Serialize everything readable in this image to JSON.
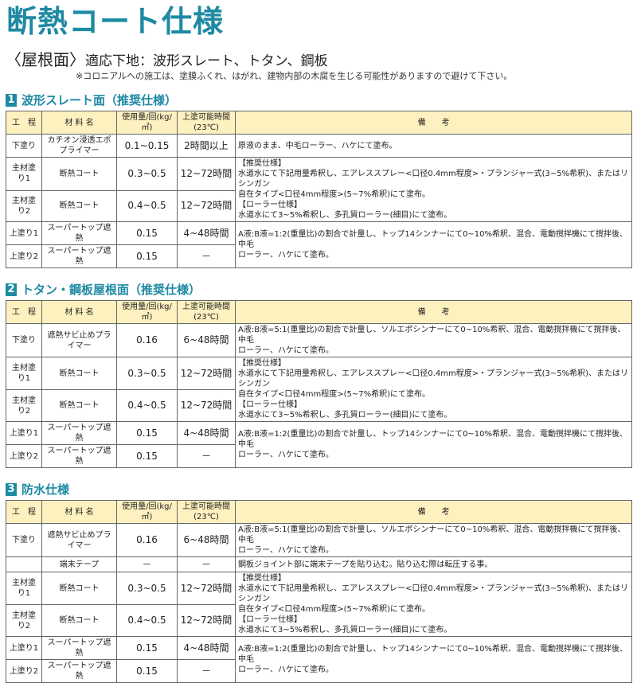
{
  "title": "断熱コート仕様",
  "subtitle": {
    "lead": "〈屋根面〉",
    "text": "適応下地：波形スレート、トタン、鋼板"
  },
  "caution": "※コロニアルへの施工は、塗膜ふくれ、はがれ、建物内部の木腐を生じる可能性がありますので避けて下さい。",
  "colors": {
    "accent": "#1e8aa3",
    "header_bg": "#fdf1c0"
  },
  "headers": [
    "工　程",
    "材 料 名",
    "使用量/回(kg/㎡)",
    "上塗可能時間(23℃)",
    "備　　考"
  ],
  "sections": [
    {
      "number": "1",
      "title": "波形スレート面（推奨仕様）",
      "rows": [
        {
          "process": "下塗り",
          "material": "カチオン浸透エポプライマー",
          "amount": "0.1~0.15",
          "interval": "2時間以上",
          "note": [
            "原液のまま、中毛ローラー、ハケにて塗布。"
          ],
          "span": 1
        },
        {
          "process": "主材塗り1",
          "material": "断熱コート",
          "amount": "0.3~0.5",
          "interval": "12~72時間",
          "note": [
            "【推奨仕様】",
            "水道水にて下記用量希釈し、エアレススプレー<口径0.4mm程度>・プランジャー式(3~5%希釈)、またはリシンガン",
            "自在タイプ<口径4mm程度>(5~7%希釈)にて塗布。",
            "【ローラー仕様】",
            "水道水にて3~5%希釈し、多孔質ローラー(細目)にて塗布。"
          ],
          "span": 2
        },
        {
          "process": "主材塗り2",
          "material": "断熱コート",
          "amount": "0.4~0.5",
          "interval": "12~72時間"
        },
        {
          "process": "上塗り1",
          "material": "スーパートップ遮熱",
          "amount": "0.15",
          "interval": "4~48時間",
          "note": [
            "A液:B液=1:2(重量比)の割合で計量し、トップ14シンナーにて0~10%希釈、混合、電動撹拌機にて撹拌後、中毛",
            "ローラー、ハケにて塗布。"
          ],
          "span": 2
        },
        {
          "process": "上塗り2",
          "material": "スーパートップ遮熱",
          "amount": "0.15",
          "interval": "－"
        }
      ]
    },
    {
      "number": "2",
      "title": "トタン・鋼板屋根面（推奨仕様）",
      "rows": [
        {
          "process": "下塗り",
          "material": "遮熱サビ止めプライマー",
          "amount": "0.16",
          "interval": "6~48時間",
          "note": [
            "A液:B液=5:1(重量比)の割合で計量し、ソルエポシンナーにて0~10%希釈、混合、電動撹拌機にて撹拌後、中毛",
            "ローラー、ハケにて塗布。"
          ],
          "span": 1
        },
        {
          "process": "主材塗り1",
          "material": "断熱コート",
          "amount": "0.3~0.5",
          "interval": "12~72時間",
          "note": [
            "【推奨仕様】",
            "水道水にて下記用量希釈し、エアレススプレー<口径0.4mm程度>・プランジャー式(3~5%希釈)、またはリシンガン",
            "自在タイプ<口径4mm程度>(5~7%希釈)にて塗布。",
            "【ローラー仕様】",
            "水道水にて3~5%希釈し、多孔質ローラー(細目)にて塗布。"
          ],
          "span": 2
        },
        {
          "process": "主材塗り2",
          "material": "断熱コート",
          "amount": "0.4~0.5",
          "interval": "12~72時間"
        },
        {
          "process": "上塗り1",
          "material": "スーパートップ遮熱",
          "amount": "0.15",
          "interval": "4~48時間",
          "note": [
            "A液:B液=1:2(重量比)の割合で計量し、トップ14シンナーにて0~10%希釈、混合、電動撹拌機にて撹拌後、中毛",
            "ローラー、ハケにて塗布。"
          ],
          "span": 2
        },
        {
          "process": "上塗り2",
          "material": "スーパートップ遮熱",
          "amount": "0.15",
          "interval": "－"
        }
      ]
    },
    {
      "number": "3",
      "title": "防水仕様",
      "rows": [
        {
          "process": "下塗り",
          "material": "遮熱サビ止めプライマー",
          "amount": "0.16",
          "interval": "6~48時間",
          "note": [
            "A液:B液=5:1(重量比)の割合で計量し、ソルエポシンナーにて0~10%希釈、混合、電動撹拌機にて撹拌後、中毛",
            "ローラー、ハケにて塗布。"
          ],
          "span": 1
        },
        {
          "process": "",
          "material": "端末テープ",
          "amount": "－",
          "interval": "－",
          "note": [
            "鋼板ジョイント部に端末テープを貼り込む。貼り込む際は転圧する事。"
          ],
          "span": 1
        },
        {
          "process": "主材塗り1",
          "material": "断熱コート",
          "amount": "0.3~0.5",
          "interval": "12~72時間",
          "note": [
            "【推奨仕様】",
            "水道水にて下記用量希釈し、エアレススプレー<口径0.4mm程度>・プランジャー式(3~5%希釈)、またはリシンガン",
            "自在タイプ<口径4mm程度>(5~7%希釈)にて塗布。",
            "【ローラー仕様】",
            "水道水にて3~5%希釈し、多孔質ローラー(細目)にて塗布。"
          ],
          "span": 2
        },
        {
          "process": "主材塗り2",
          "material": "断熱コート",
          "amount": "0.4~0.5",
          "interval": "12~72時間"
        },
        {
          "process": "上塗り1",
          "material": "スーパートップ遮熱",
          "amount": "0.15",
          "interval": "4~48時間",
          "note": [
            "A液:B液=1:2(重量比)の割合で計量し、トップ14シンナーにて0~10%希釈、混合、電動撹拌機にて撹拌後、中毛",
            "ローラー、ハケにて塗布。"
          ],
          "span": 2
        },
        {
          "process": "上塗り2",
          "material": "スーパートップ遮熱",
          "amount": "0.15",
          "interval": "－"
        }
      ]
    }
  ]
}
